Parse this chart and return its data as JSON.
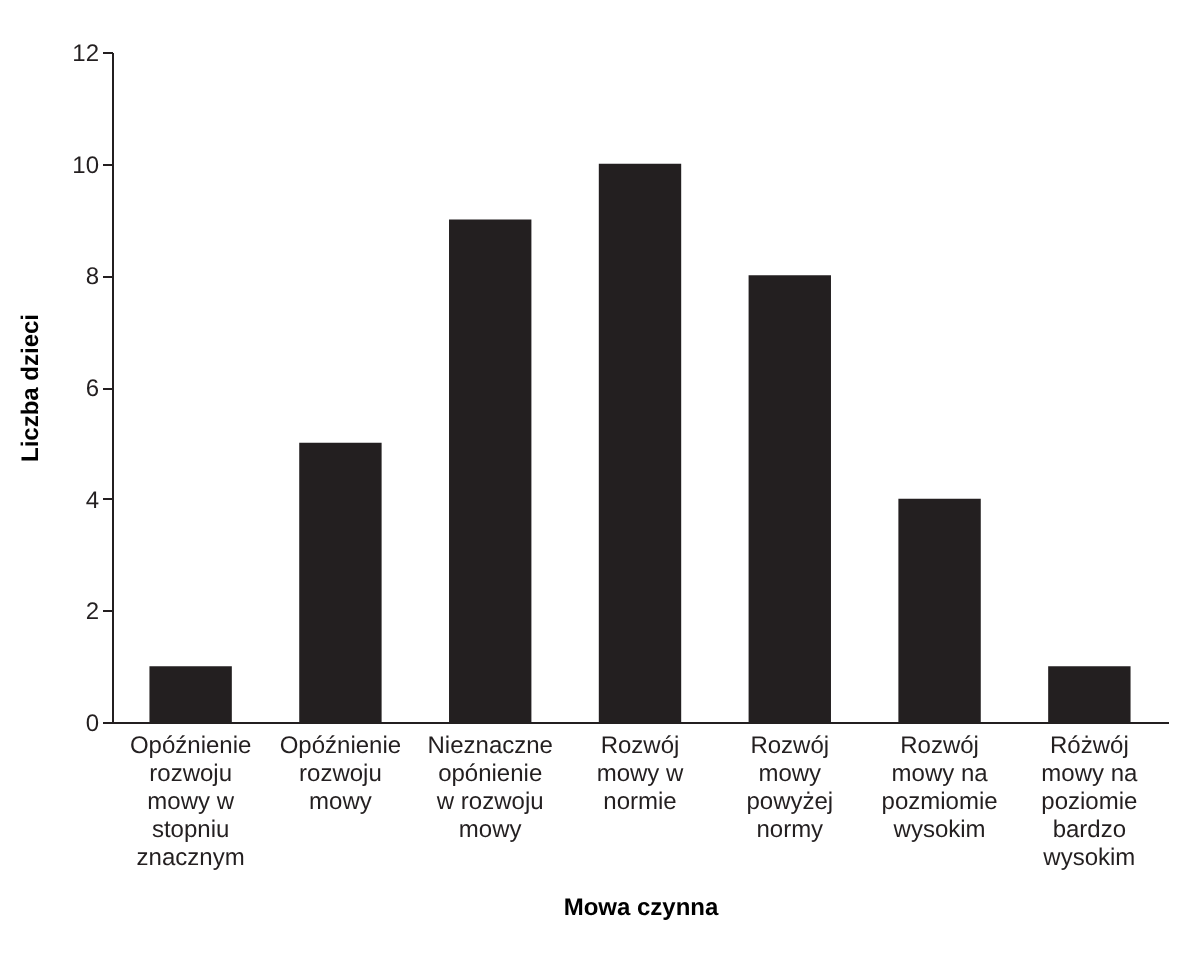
{
  "chart_data": {
    "type": "bar",
    "xlabel": "Mowa czynna",
    "ylabel": "Liczba dzieci",
    "categories": [
      "Opóźnienie rozwoju mowy w stopniu znacznym",
      "Opóźnienie rozwoju mowy",
      "Nieznaczne opónienie w rozwoju mowy",
      "Rozwój mowy w normie",
      "Rozwój mowy powyżej normy",
      "Rozwój mowy na pozmiomie wysokim",
      "Różwój mowy na poziomie bardzo wysokim"
    ],
    "values": [
      1,
      5,
      9,
      10,
      8,
      4,
      1
    ],
    "color": "#231f20",
    "ylim": [
      0,
      12
    ],
    "yticks": [
      0,
      2,
      4,
      6,
      8,
      10,
      12
    ],
    "grid": false
  }
}
